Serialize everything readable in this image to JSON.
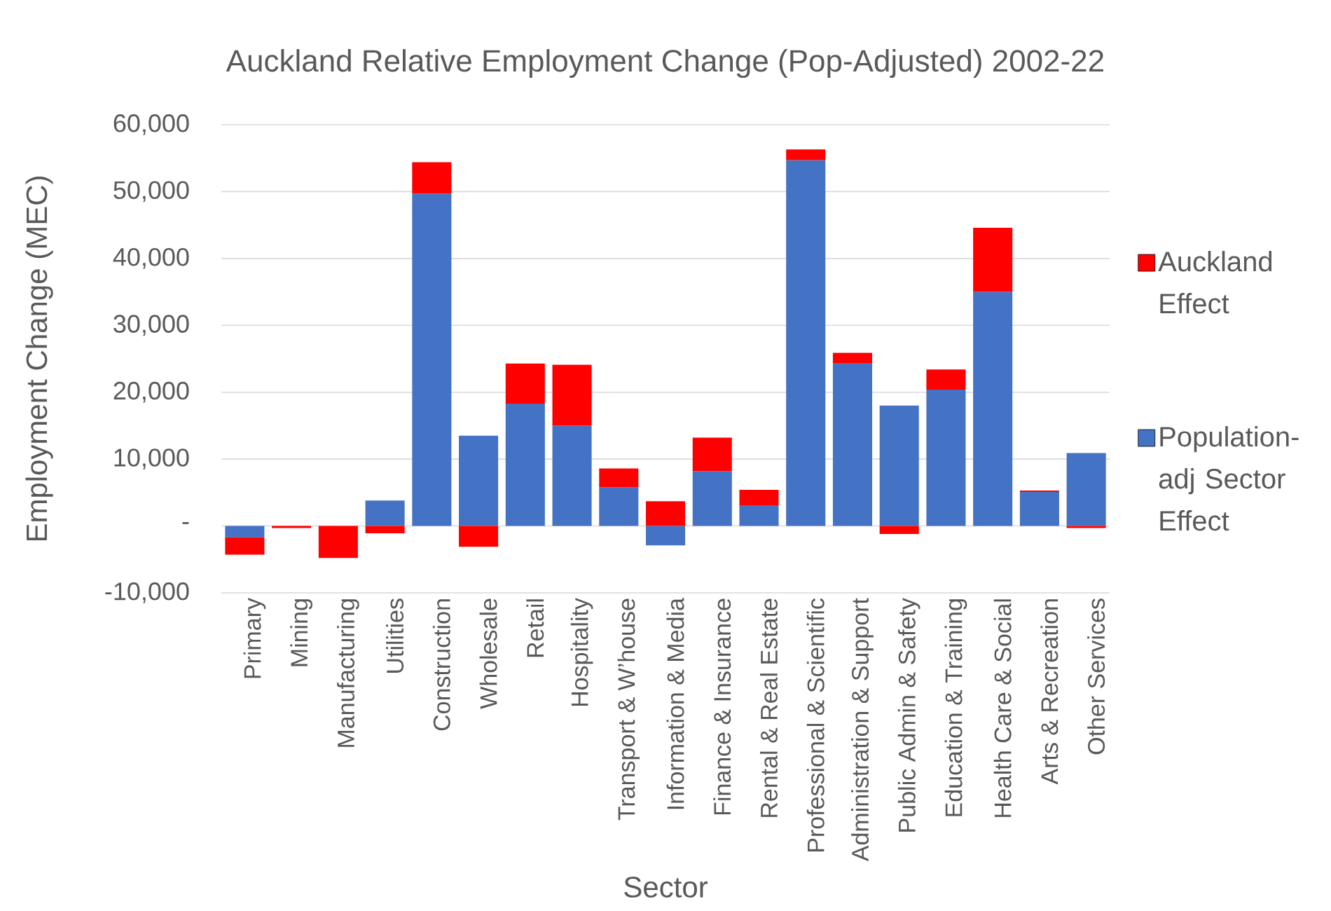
{
  "chart_data": {
    "type": "bar",
    "title": "Auckland Relative Employment Change (Pop-Adjusted) 2002-22",
    "xlabel": "Sector",
    "ylabel": "Employment Change (MEC)",
    "categories": [
      "Primary",
      "Mining",
      "Manufacturing",
      "Utilities",
      "Construction",
      "Wholesale",
      "Retail",
      "Hospitality",
      "Transport & W’house",
      "Information & Media",
      "Finance & Insurance",
      "Rental & Real Estate",
      "Professional & Scientific",
      "Administration & Support",
      "Public Admin & Safety",
      "Education & Training",
      "Health Care & Social",
      "Arts & Recreation",
      "Other Services"
    ],
    "series": [
      {
        "name": "Population-adj Sector Effect",
        "color": "#4472c4",
        "values": [
          -1700,
          null,
          null,
          3800,
          49700,
          13500,
          18300,
          15000,
          5800,
          -2900,
          8200,
          3100,
          54700,
          24300,
          18000,
          20400,
          35000,
          5100,
          10900
        ]
      },
      {
        "name": "Auckland Effect",
        "color": "#ff0000",
        "values": [
          -2600,
          -300,
          -4800,
          -1100,
          4700,
          -3100,
          6000,
          9100,
          2800,
          3700,
          5000,
          2300,
          1600,
          1600,
          -1200,
          3000,
          9600,
          200,
          -300
        ]
      }
    ],
    "stacked": true,
    "ylim": [
      -10000,
      60000
    ],
    "yticks": [
      {
        "value": -10000,
        "label": "-10,000"
      },
      {
        "value": 0,
        "label": "-"
      },
      {
        "value": 10000,
        "label": "10,000"
      },
      {
        "value": 20000,
        "label": "20,000"
      },
      {
        "value": 30000,
        "label": "30,000"
      },
      {
        "value": 40000,
        "label": "40,000"
      },
      {
        "value": 50000,
        "label": "50,000"
      },
      {
        "value": 60000,
        "label": "60,000"
      }
    ],
    "grid": "y",
    "legend": "right"
  }
}
